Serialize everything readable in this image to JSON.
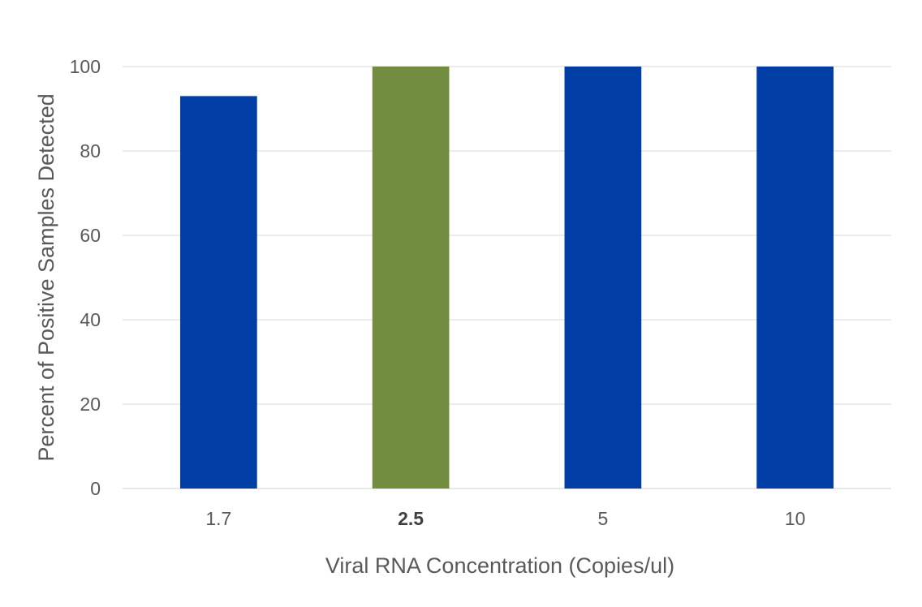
{
  "chart_data": {
    "type": "bar",
    "categories": [
      "1.7",
      "2.5",
      "5",
      "10"
    ],
    "values": [
      93,
      100,
      100,
      100
    ],
    "bar_colors": [
      "#003DA5",
      "#728C40",
      "#003DA5",
      "#003DA5"
    ],
    "bold_categories": [
      "2.5"
    ],
    "title": "",
    "xlabel": "Viral RNA Concentration (Copies/ul)",
    "ylabel": "Percent of Positive Samples Detected",
    "ylim": [
      0,
      100
    ],
    "yticks": [
      0,
      20,
      40,
      60,
      80,
      100
    ],
    "grid": true,
    "legend": "none"
  }
}
